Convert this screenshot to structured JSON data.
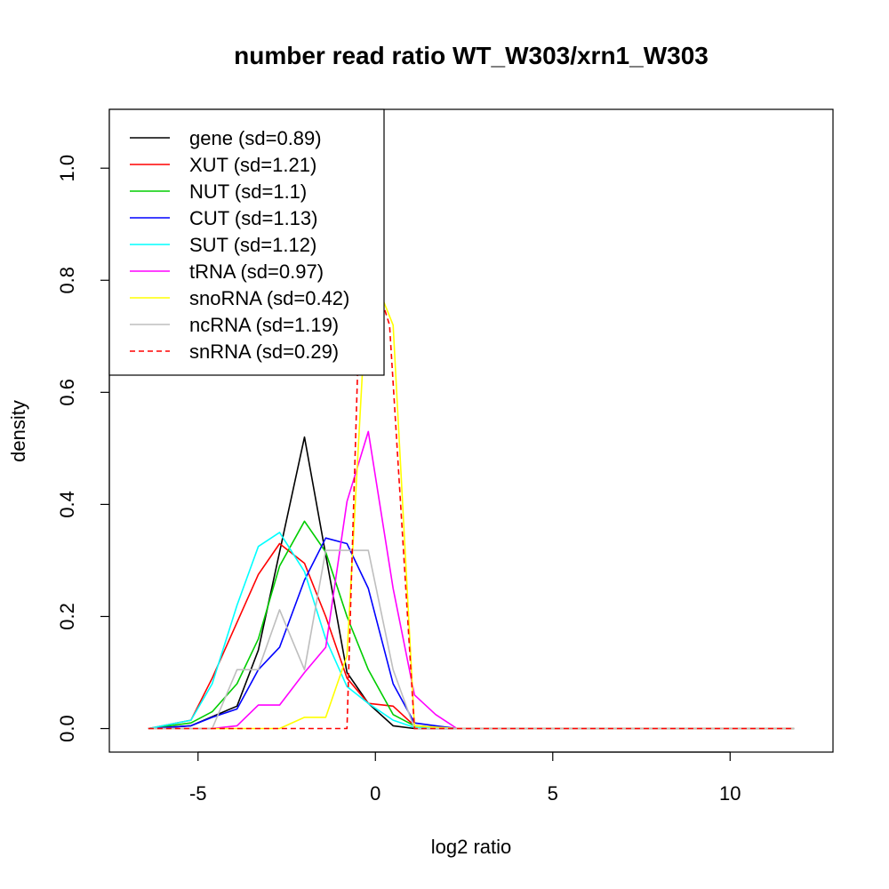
{
  "chart_data": {
    "type": "line",
    "title": "number read ratio WT_W303/xrn1_W303",
    "xlabel": "log2 ratio",
    "ylabel": "density",
    "xlim": [
      -7.5,
      12.9
    ],
    "ylim": [
      -0.042,
      1.105
    ],
    "xticks": [
      -5,
      0,
      5,
      10
    ],
    "yticks": [
      0.0,
      0.2,
      0.4,
      0.6,
      0.8,
      1.0
    ],
    "xtick_labels": [
      "-5",
      "0",
      "5",
      "10"
    ],
    "ytick_labels": [
      "0.0",
      "0.2",
      "0.4",
      "0.6",
      "0.8",
      "1.0"
    ],
    "grid": false,
    "legend_position": "top-left",
    "series": [
      {
        "name": "gene (sd=0.89)",
        "color": "#000000",
        "dash": false,
        "x": [
          -6.4,
          -5.2,
          -3.9,
          -3.3,
          -2.0,
          -0.8,
          -0.2,
          0.5,
          1.1,
          2.3,
          11.8
        ],
        "y": [
          0.0,
          0.005,
          0.04,
          0.14,
          0.52,
          0.1,
          0.045,
          0.005,
          0.0,
          0.0,
          0.0
        ]
      },
      {
        "name": "XUT (sd=1.21)",
        "color": "#ff0000",
        "dash": false,
        "x": [
          -6.4,
          -5.2,
          -4.6,
          -3.3,
          -2.7,
          -2.0,
          -1.4,
          -0.8,
          -0.2,
          0.5,
          1.1,
          2.3,
          11.8
        ],
        "y": [
          0.0,
          0.015,
          0.09,
          0.275,
          0.33,
          0.295,
          0.2,
          0.09,
          0.045,
          0.04,
          0.005,
          0.0,
          0.0
        ]
      },
      {
        "name": "NUT (sd=1.1)",
        "color": "#00cd00",
        "dash": false,
        "x": [
          -6.4,
          -5.2,
          -4.6,
          -3.9,
          -3.3,
          -2.7,
          -2.0,
          -1.4,
          -0.8,
          -0.2,
          0.5,
          1.1,
          2.3,
          11.8
        ],
        "y": [
          0.0,
          0.01,
          0.03,
          0.08,
          0.16,
          0.29,
          0.37,
          0.315,
          0.2,
          0.105,
          0.025,
          0.005,
          0.0,
          0.0
        ]
      },
      {
        "name": "CUT (sd=1.13)",
        "color": "#0000ff",
        "dash": false,
        "x": [
          -6.4,
          -5.2,
          -4.6,
          -3.9,
          -3.3,
          -2.7,
          -2.0,
          -1.4,
          -0.8,
          -0.2,
          0.5,
          1.1,
          1.7,
          2.3,
          11.8
        ],
        "y": [
          0.0,
          0.005,
          0.02,
          0.035,
          0.105,
          0.145,
          0.265,
          0.34,
          0.33,
          0.25,
          0.08,
          0.01,
          0.005,
          0.0,
          0.0
        ]
      },
      {
        "name": "SUT (sd=1.12)",
        "color": "#00ffff",
        "dash": false,
        "x": [
          -6.4,
          -5.2,
          -4.6,
          -3.9,
          -3.3,
          -2.7,
          -2.0,
          -1.4,
          -0.8,
          -0.2,
          0.5,
          1.1,
          2.3,
          11.8
        ],
        "y": [
          0.0,
          0.015,
          0.08,
          0.22,
          0.325,
          0.35,
          0.28,
          0.16,
          0.075,
          0.045,
          0.015,
          0.002,
          0.0,
          0.0
        ]
      },
      {
        "name": "tRNA (sd=0.97)",
        "color": "#ff00ff",
        "dash": false,
        "x": [
          -6.4,
          -4.6,
          -3.9,
          -3.3,
          -2.7,
          -2.0,
          -1.4,
          -0.8,
          -0.2,
          0.5,
          1.1,
          1.7,
          2.3,
          11.8
        ],
        "y": [
          0.0,
          0.0,
          0.005,
          0.042,
          0.042,
          0.1,
          0.145,
          0.405,
          0.53,
          0.25,
          0.06,
          0.025,
          0.0,
          0.0
        ]
      },
      {
        "name": "snoRNA (sd=0.42)",
        "color": "#ffff00",
        "dash": false,
        "x": [
          -6.4,
          -2.7,
          -2.0,
          -1.4,
          -0.8,
          -0.2,
          0.5,
          1.1,
          2.3,
          11.8
        ],
        "y": [
          0.0,
          0.0,
          0.02,
          0.02,
          0.13,
          0.83,
          0.72,
          0.005,
          0.0,
          0.0
        ]
      },
      {
        "name": "ncRNA (sd=1.19)",
        "color": "#bebebe",
        "dash": false,
        "x": [
          -6.4,
          -5.2,
          -4.6,
          -3.9,
          -3.3,
          -2.7,
          -2.0,
          -1.4,
          -0.8,
          -0.2,
          0.5,
          1.1,
          2.3,
          11.8
        ],
        "y": [
          0.0,
          0.0,
          0.0,
          0.105,
          0.105,
          0.212,
          0.105,
          0.318,
          0.318,
          0.318,
          0.105,
          0.0,
          0.0,
          0.0
        ]
      },
      {
        "name": "snRNA (sd=0.29)",
        "color": "#ff0000",
        "dash": true,
        "x": [
          -6.4,
          -0.8,
          -0.5,
          -0.2,
          0.1,
          0.4,
          1.1,
          11.8
        ],
        "y": [
          0.0,
          0.0,
          0.64,
          0.78,
          0.78,
          0.72,
          0.0,
          0.0
        ]
      }
    ]
  }
}
